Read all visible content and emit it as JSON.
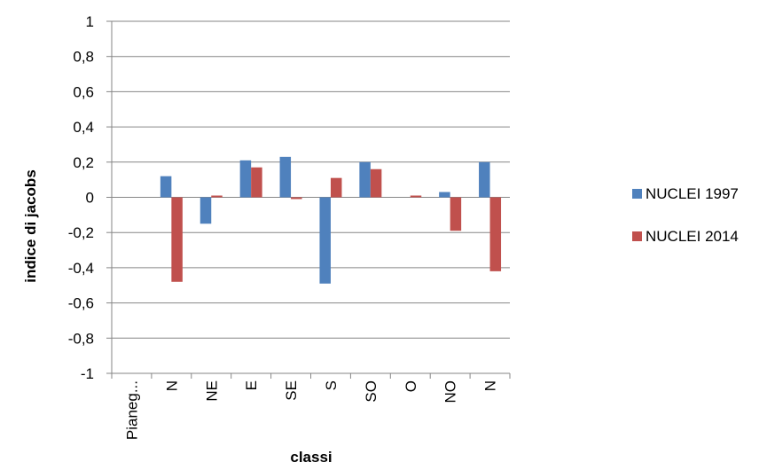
{
  "chart_data": {
    "type": "bar",
    "title": "",
    "xlabel": "classi",
    "ylabel": "indice di jacobs",
    "categories": [
      "Pianeg...",
      "N",
      "NE",
      "E",
      "SE",
      "S",
      "SO",
      "O",
      "NO",
      "N"
    ],
    "ylim": [
      -1,
      1
    ],
    "yticks": [
      "1",
      "0,8",
      "0,6",
      "0,4",
      "0,2",
      "0",
      "-0,2",
      "-0,4",
      "-0,6",
      "-0,8",
      "-1"
    ],
    "ytick_values": [
      1,
      0.8,
      0.6,
      0.4,
      0.2,
      0,
      -0.2,
      -0.4,
      -0.6,
      -0.8,
      -1
    ],
    "grid": true,
    "legend_position": "right",
    "series": [
      {
        "name": "NUCLEI 1997",
        "color": "#4f81bd",
        "values": [
          null,
          0.12,
          -0.15,
          0.21,
          0.23,
          -0.49,
          0.2,
          null,
          0.03,
          0.2
        ]
      },
      {
        "name": "NUCLEI 2014",
        "color": "#c0504d",
        "values": [
          null,
          -0.48,
          0.01,
          0.17,
          -0.01,
          0.11,
          0.16,
          0.01,
          -0.19,
          -0.42
        ]
      }
    ]
  }
}
